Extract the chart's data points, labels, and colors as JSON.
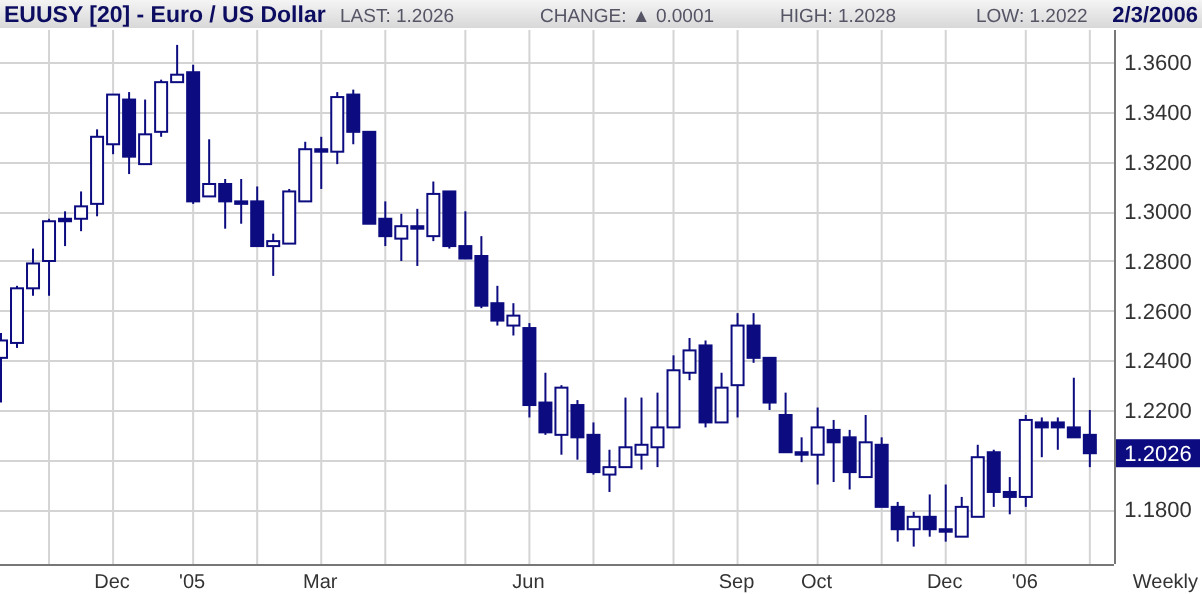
{
  "chart_data": {
    "type": "candlestick",
    "title": "EUUSY [20] - Euro / US Dollar",
    "annotations": [
      "LAST: 1.2026",
      "CHANGE: ▲ 0.0001",
      "HIGH: 1.2028",
      "LOW: 1.2022",
      "2/3/2006",
      "Weekly",
      {
        "text": "1.2026",
        "x": "2006-02-03",
        "y": 1.2026
      }
    ],
    "color": "#0c0c80",
    "x": [
      "2004-10-15",
      "2004-10-22",
      "2004-10-29",
      "2004-11-05",
      "2004-11-12",
      "2004-11-19",
      "2004-11-26",
      "2004-12-03",
      "2004-12-10",
      "2004-12-17",
      "2004-12-24",
      "2004-12-31",
      "2005-01-07",
      "2005-01-14",
      "2005-01-21",
      "2005-01-28",
      "2005-02-04",
      "2005-02-11",
      "2005-02-18",
      "2005-02-25",
      "2005-03-04",
      "2005-03-11",
      "2005-03-18",
      "2005-03-25",
      "2005-04-01",
      "2005-04-08",
      "2005-04-15",
      "2005-04-22",
      "2005-04-29",
      "2005-05-06",
      "2005-05-13",
      "2005-05-20",
      "2005-05-27",
      "2005-06-03",
      "2005-06-10",
      "2005-06-17",
      "2005-06-24",
      "2005-07-01",
      "2005-07-08",
      "2005-07-15",
      "2005-07-22",
      "2005-07-29",
      "2005-08-05",
      "2005-08-12",
      "2005-08-19",
      "2005-08-26",
      "2005-09-02",
      "2005-09-09",
      "2005-09-16",
      "2005-09-23",
      "2005-09-30",
      "2005-10-07",
      "2005-10-14",
      "2005-10-21",
      "2005-10-28",
      "2005-11-04",
      "2005-11-11",
      "2005-11-18",
      "2005-11-25",
      "2005-12-02",
      "2005-12-09",
      "2005-12-16",
      "2005-12-23",
      "2005-12-30",
      "2006-01-06",
      "2006-01-13",
      "2006-01-20",
      "2006-01-27",
      "2006-02-03"
    ],
    "ohlc": [
      [
        1.241,
        1.251,
        1.223,
        1.248
      ],
      [
        1.247,
        1.27,
        1.245,
        1.269
      ],
      [
        1.269,
        1.285,
        1.266,
        1.279
      ],
      [
        1.28,
        1.297,
        1.266,
        1.296
      ],
      [
        1.297,
        1.3,
        1.286,
        1.296
      ],
      [
        1.297,
        1.308,
        1.292,
        1.302
      ],
      [
        1.303,
        1.333,
        1.298,
        1.33
      ],
      [
        1.327,
        1.347,
        1.323,
        1.347
      ],
      [
        1.345,
        1.348,
        1.315,
        1.322
      ],
      [
        1.319,
        1.345,
        1.319,
        1.331
      ],
      [
        1.332,
        1.353,
        1.33,
        1.352
      ],
      [
        1.352,
        1.367,
        1.352,
        1.355
      ],
      [
        1.356,
        1.359,
        1.303,
        1.304
      ],
      [
        1.306,
        1.329,
        1.306,
        1.311
      ],
      [
        1.311,
        1.313,
        1.293,
        1.304
      ],
      [
        1.304,
        1.313,
        1.295,
        1.303
      ],
      [
        1.304,
        1.31,
        1.286,
        1.286
      ],
      [
        1.286,
        1.291,
        1.274,
        1.288
      ],
      [
        1.287,
        1.309,
        1.287,
        1.308
      ],
      [
        1.304,
        1.328,
        1.304,
        1.325
      ],
      [
        1.325,
        1.33,
        1.309,
        1.324
      ],
      [
        1.324,
        1.348,
        1.319,
        1.346
      ],
      [
        1.347,
        1.349,
        1.327,
        1.332
      ],
      [
        1.332,
        1.332,
        1.295,
        1.295
      ],
      [
        1.297,
        1.304,
        1.286,
        1.29
      ],
      [
        1.289,
        1.299,
        1.28,
        1.294
      ],
      [
        1.294,
        1.301,
        1.278,
        1.293
      ],
      [
        1.29,
        1.312,
        1.288,
        1.307
      ],
      [
        1.308,
        1.308,
        1.285,
        1.286
      ],
      [
        1.286,
        1.3,
        1.281,
        1.281
      ],
      [
        1.282,
        1.29,
        1.261,
        1.262
      ],
      [
        1.263,
        1.27,
        1.254,
        1.256
      ],
      [
        1.254,
        1.263,
        1.25,
        1.258
      ],
      [
        1.253,
        1.255,
        1.217,
        1.222
      ],
      [
        1.223,
        1.235,
        1.21,
        1.211
      ],
      [
        1.21,
        1.23,
        1.202,
        1.229
      ],
      [
        1.222,
        1.224,
        1.2,
        1.209
      ],
      [
        1.21,
        1.215,
        1.194,
        1.195
      ],
      [
        1.194,
        1.204,
        1.187,
        1.197
      ],
      [
        1.197,
        1.225,
        1.197,
        1.205
      ],
      [
        1.202,
        1.225,
        1.196,
        1.206
      ],
      [
        1.205,
        1.227,
        1.197,
        1.213
      ],
      [
        1.213,
        1.242,
        1.213,
        1.236
      ],
      [
        1.235,
        1.249,
        1.232,
        1.244
      ],
      [
        1.246,
        1.248,
        1.213,
        1.215
      ],
      [
        1.215,
        1.235,
        1.215,
        1.229
      ],
      [
        1.23,
        1.259,
        1.217,
        1.254
      ],
      [
        1.254,
        1.259,
        1.239,
        1.241
      ],
      [
        1.241,
        1.241,
        1.22,
        1.223
      ],
      [
        1.218,
        1.227,
        1.203,
        1.203
      ],
      [
        1.203,
        1.209,
        1.199,
        1.202
      ],
      [
        1.202,
        1.221,
        1.19,
        1.213
      ],
      [
        1.212,
        1.216,
        1.191,
        1.207
      ],
      [
        1.209,
        1.212,
        1.188,
        1.195
      ],
      [
        1.193,
        1.218,
        1.193,
        1.207
      ],
      [
        1.206,
        1.209,
        1.181,
        1.181
      ],
      [
        1.181,
        1.183,
        1.167,
        1.172
      ],
      [
        1.172,
        1.179,
        1.165,
        1.177
      ],
      [
        1.177,
        1.186,
        1.169,
        1.172
      ],
      [
        1.172,
        1.19,
        1.167,
        1.171
      ],
      [
        1.169,
        1.185,
        1.169,
        1.181
      ],
      [
        1.177,
        1.206,
        1.177,
        1.201
      ],
      [
        1.203,
        1.204,
        1.181,
        1.187
      ],
      [
        1.187,
        1.193,
        1.178,
        1.185
      ],
      [
        1.185,
        1.218,
        1.181,
        1.216
      ],
      [
        1.215,
        1.217,
        1.201,
        1.213
      ],
      [
        1.215,
        1.217,
        1.204,
        1.213
      ],
      [
        1.213,
        1.233,
        1.209,
        1.209
      ],
      [
        1.21,
        1.22,
        1.197,
        1.2026
      ]
    ],
    "xlim": [
      "2004-10-15",
      "2006-02-14"
    ],
    "xticks": [
      {
        "value": "2004-11-05",
        "label": null
      },
      {
        "value": "2004-12-03",
        "label": "Dec"
      },
      {
        "value": "2005-01-07",
        "label": "'05"
      },
      {
        "value": "2005-02-04",
        "label": null
      },
      {
        "value": "2005-03-04",
        "label": "Mar"
      },
      {
        "value": "2005-04-01",
        "label": null
      },
      {
        "value": "2005-05-06",
        "label": null
      },
      {
        "value": "2005-06-03",
        "label": "Jun"
      },
      {
        "value": "2005-07-01",
        "label": null
      },
      {
        "value": "2005-08-05",
        "label": null
      },
      {
        "value": "2005-09-02",
        "label": "Sep"
      },
      {
        "value": "2005-10-07",
        "label": "Oct"
      },
      {
        "value": "2005-11-04",
        "label": null
      },
      {
        "value": "2005-12-02",
        "label": "Dec"
      },
      {
        "value": "2006-01-06",
        "label": "'06"
      },
      {
        "value": "2006-02-03",
        "label": null
      }
    ],
    "ylim": [
      1.158,
      1.373
    ],
    "yticks": [
      {
        "value": 1.18,
        "label": "1.1800"
      },
      {
        "value": 1.2,
        "label": null
      },
      {
        "value": 1.22,
        "label": "1.2200"
      },
      {
        "value": 1.24,
        "label": "1.2400"
      },
      {
        "value": 1.26,
        "label": "1.2600"
      },
      {
        "value": 1.28,
        "label": "1.2800"
      },
      {
        "value": 1.3,
        "label": "1.3000"
      },
      {
        "value": 1.32,
        "label": "1.3200"
      },
      {
        "value": 1.34,
        "label": "1.3400"
      },
      {
        "value": 1.36,
        "label": "1.3600"
      }
    ],
    "grid": true
  }
}
